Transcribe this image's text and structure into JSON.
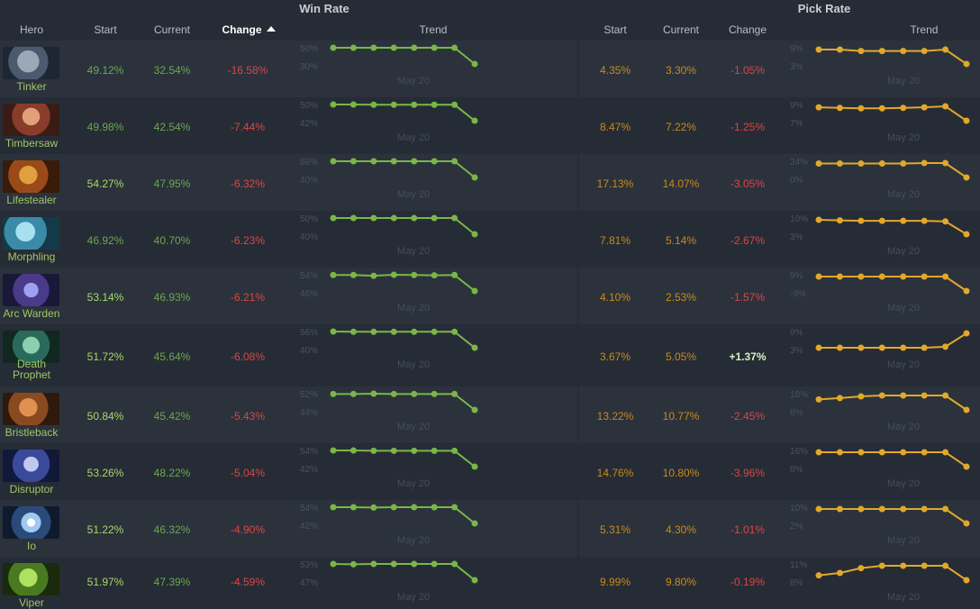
{
  "header": {
    "win_rate_title": "Win Rate",
    "pick_rate_title": "Pick Rate",
    "columns": {
      "hero": "Hero",
      "win_start": "Start",
      "win_current": "Current",
      "win_change": "Change",
      "win_trend": "Trend",
      "pick_start": "Start",
      "pick_current": "Current",
      "pick_change": "Change",
      "pick_trend": "Trend"
    }
  },
  "colors": {
    "win_line": "#7ab648",
    "pick_line": "#e1a82a",
    "negative": "#d94646",
    "positive": "#d8f0c0",
    "bg": "#262c35",
    "row_alt": "#2b323c"
  },
  "rows": [
    {
      "hero": "Tinker",
      "portrait": "tinker",
      "win_start": "49.12%",
      "win_current": "32.54%",
      "win_change": "-16.58%",
      "win_axis": [
        "50%",
        "30%"
      ],
      "win_date": "May 20",
      "win_trend": [
        49.1,
        49.1,
        49.1,
        49.1,
        49.1,
        49.1,
        49.1,
        32.5
      ],
      "pick_start": "4.35%",
      "pick_current": "3.30%",
      "pick_change": "-1.05%",
      "pick_axis": [
        "9%",
        "3%"
      ],
      "pick_date": "May 20",
      "pick_trend": [
        4.3,
        4.3,
        4.2,
        4.2,
        4.2,
        4.2,
        4.3,
        3.3
      ],
      "win_bright": false
    },
    {
      "hero": "Timbersaw",
      "portrait": "timbersaw",
      "win_start": "49.98%",
      "win_current": "42.54%",
      "win_change": "-7.44%",
      "win_axis": [
        "50%",
        "42%"
      ],
      "win_date": "May 20",
      "win_trend": [
        50.0,
        50.0,
        49.9,
        49.9,
        49.9,
        49.9,
        49.9,
        42.5
      ],
      "pick_start": "8.47%",
      "pick_current": "7.22%",
      "pick_change": "-1.25%",
      "pick_axis": [
        "9%",
        "7%"
      ],
      "pick_date": "May 20",
      "pick_trend": [
        8.5,
        8.45,
        8.4,
        8.4,
        8.45,
        8.5,
        8.6,
        7.2
      ],
      "win_bright": false
    },
    {
      "hero": "Lifestealer",
      "portrait": "lifestealer",
      "win_start": "54.27%",
      "win_current": "47.95%",
      "win_change": "-6.32%",
      "win_axis": [
        "56%",
        "40%"
      ],
      "win_date": "May 20",
      "win_trend": [
        54.3,
        54.3,
        54.3,
        54.3,
        54.3,
        54.3,
        54.3,
        48.0
      ],
      "pick_start": "17.13%",
      "pick_current": "14.07%",
      "pick_change": "-3.05%",
      "pick_axis": [
        "24%",
        "0%"
      ],
      "pick_date": "May 20",
      "pick_trend": [
        17.1,
        17.1,
        17.1,
        17.1,
        17.1,
        17.2,
        17.2,
        14.1
      ],
      "win_bright": true
    },
    {
      "hero": "Morphling",
      "portrait": "morphling",
      "win_start": "46.92%",
      "win_current": "40.70%",
      "win_change": "-6.23%",
      "win_axis": [
        "50%",
        "40%"
      ],
      "win_date": "May 20",
      "win_trend": [
        46.9,
        46.9,
        46.9,
        46.9,
        46.9,
        46.9,
        46.9,
        40.7
      ],
      "pick_start": "7.81%",
      "pick_current": "5.14%",
      "pick_change": "-2.67%",
      "pick_axis": [
        "10%",
        "3%"
      ],
      "pick_date": "May 20",
      "pick_trend": [
        7.8,
        7.7,
        7.6,
        7.6,
        7.6,
        7.6,
        7.5,
        5.1
      ],
      "win_bright": false
    },
    {
      "hero": "Arc Warden",
      "portrait": "arc-warden",
      "win_start": "53.14%",
      "win_current": "46.93%",
      "win_change": "-6.21%",
      "win_axis": [
        "54%",
        "46%"
      ],
      "win_date": "May 20",
      "win_trend": [
        53.1,
        53.1,
        52.8,
        53.2,
        53.1,
        53.0,
        53.1,
        46.9
      ],
      "pick_start": "4.10%",
      "pick_current": "2.53%",
      "pick_change": "-1.57%",
      "pick_axis": [
        "9%",
        "-9%"
      ],
      "pick_date": "May 20",
      "pick_trend": [
        4.1,
        4.1,
        4.1,
        4.1,
        4.1,
        4.1,
        4.1,
        2.5
      ],
      "win_bright": true
    },
    {
      "hero": "Death Prophet",
      "portrait": "death-prophet",
      "win_start": "51.72%",
      "win_current": "45.64%",
      "win_change": "-6.08%",
      "win_axis": [
        "56%",
        "40%"
      ],
      "win_date": "May 20",
      "win_trend": [
        51.7,
        51.6,
        51.6,
        51.6,
        51.6,
        51.6,
        51.6,
        45.6
      ],
      "pick_start": "3.67%",
      "pick_current": "5.05%",
      "pick_change": "+1.37%",
      "pick_axis": [
        "9%",
        "3%"
      ],
      "pick_date": "May 20",
      "pick_trend": [
        3.7,
        3.7,
        3.7,
        3.7,
        3.7,
        3.7,
        3.8,
        5.1
      ],
      "win_bright": true
    },
    {
      "hero": "Bristleback",
      "portrait": "bristleback",
      "win_start": "50.84%",
      "win_current": "45.42%",
      "win_change": "-5.43%",
      "win_axis": [
        "52%",
        "44%"
      ],
      "win_date": "May 20",
      "win_trend": [
        50.8,
        50.8,
        50.9,
        50.8,
        50.8,
        50.8,
        50.8,
        45.4
      ],
      "pick_start": "13.22%",
      "pick_current": "10.77%",
      "pick_change": "-2.45%",
      "pick_axis": [
        "18%",
        "8%"
      ],
      "pick_date": "May 20",
      "pick_trend": [
        13.2,
        13.5,
        13.9,
        14.1,
        14.1,
        14.1,
        14.1,
        10.8
      ],
      "win_bright": true
    },
    {
      "hero": "Disruptor",
      "portrait": "disruptor",
      "win_start": "53.26%",
      "win_current": "48.22%",
      "win_change": "-5.04%",
      "win_axis": [
        "54%",
        "42%"
      ],
      "win_date": "May 20",
      "win_trend": [
        53.3,
        53.3,
        53.2,
        53.2,
        53.2,
        53.2,
        53.2,
        48.2
      ],
      "pick_start": "14.76%",
      "pick_current": "10.80%",
      "pick_change": "-3.96%",
      "pick_axis": [
        "16%",
        "8%"
      ],
      "pick_date": "May 20",
      "pick_trend": [
        14.8,
        14.8,
        14.8,
        14.8,
        14.8,
        14.8,
        14.8,
        10.8
      ],
      "win_bright": true
    },
    {
      "hero": "Io",
      "portrait": "io",
      "win_start": "51.22%",
      "win_current": "46.32%",
      "win_change": "-4.90%",
      "win_axis": [
        "54%",
        "42%"
      ],
      "win_date": "May 20",
      "win_trend": [
        51.2,
        51.2,
        51.1,
        51.2,
        51.2,
        51.2,
        51.2,
        46.3
      ],
      "pick_start": "5.31%",
      "pick_current": "4.30%",
      "pick_change": "-1.01%",
      "pick_axis": [
        "10%",
        "2%"
      ],
      "pick_date": "May 20",
      "pick_trend": [
        5.3,
        5.3,
        5.3,
        5.3,
        5.3,
        5.3,
        5.3,
        4.3
      ],
      "win_bright": true
    },
    {
      "hero": "Viper",
      "portrait": "viper",
      "win_start": "51.97%",
      "win_current": "47.39%",
      "win_change": "-4.59%",
      "win_axis": [
        "53%",
        "47%"
      ],
      "win_date": "May 20",
      "win_trend": [
        52.0,
        51.9,
        52.0,
        52.0,
        52.0,
        52.0,
        52.0,
        47.4
      ],
      "pick_start": "9.99%",
      "pick_current": "9.80%",
      "pick_change": "-0.19%",
      "pick_axis": [
        "11%",
        "8%"
      ],
      "pick_date": "May 20",
      "pick_trend": [
        10.0,
        10.1,
        10.3,
        10.4,
        10.4,
        10.4,
        10.4,
        9.8
      ],
      "win_bright": true
    }
  ]
}
